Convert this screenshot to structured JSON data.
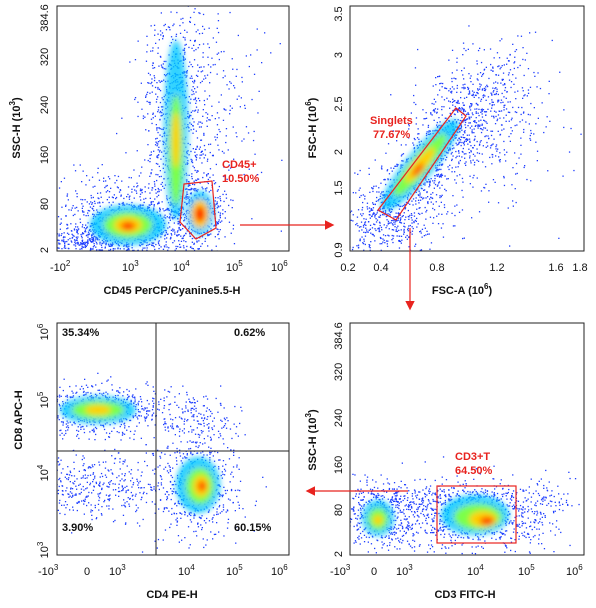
{
  "colors": {
    "gate": "#e8231f",
    "arrow": "#e8231f",
    "density_low": "#1f3fff",
    "density_high": "#ff1a00"
  },
  "panels": [
    {
      "id": "p1",
      "xlabel_main": "CD45 PerCP/Cyanine5.5-H",
      "ylabel_main": "SSC-H",
      "ylabel_unit": "(10",
      "ylabel_exp": "3",
      "ylabel_close": ")",
      "xticks": [
        {
          "base": "-10",
          "exp": "2"
        },
        {
          "base": "10",
          "exp": "3"
        },
        {
          "base": "10",
          "exp": "4"
        },
        {
          "base": "10",
          "exp": "5"
        },
        {
          "base": "10",
          "exp": "6"
        }
      ],
      "yticks": [
        "2",
        "80",
        "160",
        "240",
        "320",
        "384.6"
      ],
      "gate": {
        "name": "CD45+",
        "value": "10.50%"
      }
    },
    {
      "id": "p2",
      "xlabel_main": "FSC-A",
      "xlabel_unit": "(10",
      "xlabel_exp": "6",
      "xlabel_close": ")",
      "ylabel_main": "FSC-H",
      "ylabel_unit": "(10",
      "ylabel_exp": "6",
      "ylabel_close": ")",
      "xticks": [
        "0.2",
        "0.4",
        "0.8",
        "1.2",
        "1.6",
        "1.8"
      ],
      "yticks": [
        "0.9",
        "1.5",
        "2",
        "2.5",
        "3",
        "3.5"
      ],
      "gate": {
        "name": "Singlets",
        "value": "77.67%"
      }
    },
    {
      "id": "p3",
      "xlabel_main": "CD4 PE-H",
      "ylabel_main": "CD8 APC-H",
      "xticks": [
        {
          "base": "-10",
          "exp": "3"
        },
        {
          "base": "0",
          "exp": ""
        },
        {
          "base": "10",
          "exp": "3"
        },
        {
          "base": "10",
          "exp": "4"
        },
        {
          "base": "10",
          "exp": "5"
        },
        {
          "base": "10",
          "exp": "6"
        }
      ],
      "yticks": [
        {
          "base": "10",
          "exp": "3"
        },
        {
          "base": "10",
          "exp": "4"
        },
        {
          "base": "10",
          "exp": "5"
        },
        {
          "base": "10",
          "exp": "6"
        }
      ],
      "quadrants": {
        "ul": "35.34%",
        "ur": "0.62%",
        "ll": "3.90%",
        "lr": "60.15%"
      }
    },
    {
      "id": "p4",
      "xlabel_main": "CD3 FITC-H",
      "ylabel_main": "SSC-H",
      "ylabel_unit": "(10",
      "ylabel_exp": "3",
      "ylabel_close": ")",
      "xticks": [
        {
          "base": "-10",
          "exp": "3"
        },
        {
          "base": "0",
          "exp": ""
        },
        {
          "base": "10",
          "exp": "3"
        },
        {
          "base": "10",
          "exp": "4"
        },
        {
          "base": "10",
          "exp": "5"
        },
        {
          "base": "10",
          "exp": "6"
        }
      ],
      "yticks": [
        "2",
        "80",
        "160",
        "240",
        "320",
        "384.6"
      ],
      "gate": {
        "name": "CD3+T",
        "value": "64.50%"
      }
    }
  ]
}
